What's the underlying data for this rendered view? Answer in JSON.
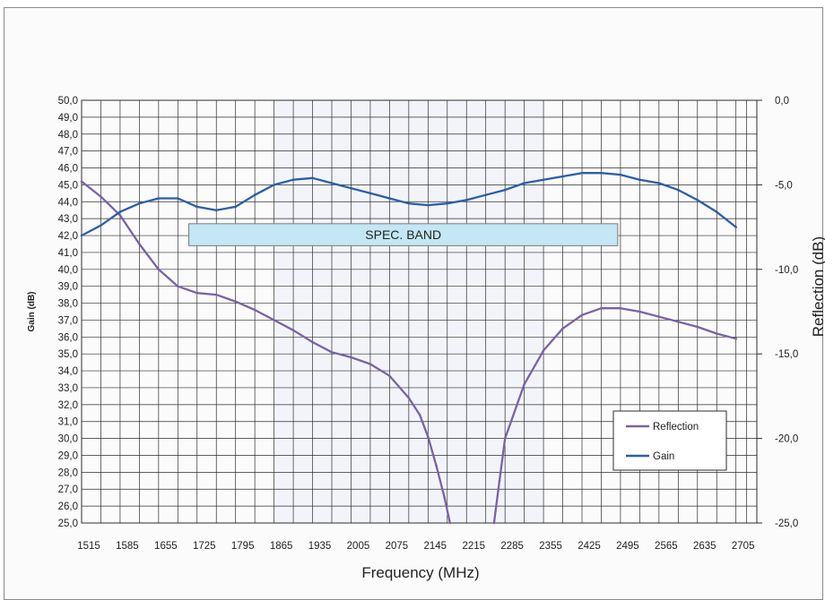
{
  "chart_data": {
    "type": "line",
    "title": "",
    "xlabel": "Frequency (MHz)",
    "ylabel": "Gain (dB)",
    "y2label": "Reflection (dB)",
    "ylim": [
      25,
      50
    ],
    "y2lim": [
      -25,
      0
    ],
    "grid": true,
    "legend_placement": "bottom-right",
    "x_tick_labels": [
      "1515",
      "1585",
      "1655",
      "1725",
      "1795",
      "1865",
      "1935",
      "2005",
      "2075",
      "2145",
      "2215",
      "2285",
      "2355",
      "2425",
      "2495",
      "2565",
      "2635",
      "2705"
    ],
    "y_tick_labels": [
      "25,0",
      "26,0",
      "27,0",
      "28,0",
      "29,0",
      "30,0",
      "31,0",
      "32,0",
      "33,0",
      "34,0",
      "35,0",
      "36,0",
      "37,0",
      "38,0",
      "39,0",
      "40,0",
      "41,0",
      "42,0",
      "43,0",
      "44,0",
      "45,0",
      "46,0",
      "47,0",
      "48,0",
      "49,0",
      "50,0"
    ],
    "y2_tick_labels": [
      "0,0",
      "-5,0",
      "-10,0",
      "-15,0",
      "-20,0",
      "-25,0"
    ],
    "annotation": {
      "text": "SPEC. BAND",
      "x_start": 1710,
      "x_end": 2490,
      "y_bottom": 41.4,
      "y_top": 42.7
    },
    "series": [
      {
        "name": "Reflection",
        "axis": "right",
        "color": "#7a62a8",
        "x": [
          1515,
          1550,
          1585,
          1620,
          1655,
          1690,
          1725,
          1760,
          1795,
          1830,
          1865,
          1900,
          1935,
          1970,
          2005,
          2040,
          2075,
          2110,
          2130,
          2145,
          2160,
          2175,
          2185,
          2195,
          2255,
          2265,
          2275,
          2285,
          2320,
          2355,
          2390,
          2425,
          2460,
          2495,
          2530,
          2565,
          2600,
          2635,
          2670,
          2705
        ],
        "values": [
          -4.8,
          -5.7,
          -6.8,
          -8.5,
          -10.0,
          -11.0,
          -11.4,
          -11.5,
          -11.9,
          -12.4,
          -13.0,
          -13.6,
          -14.3,
          -14.9,
          -15.2,
          -15.6,
          -16.3,
          -17.6,
          -18.6,
          -19.9,
          -21.6,
          -23.5,
          -25.0,
          -25.3,
          -25.3,
          -25.0,
          -22.5,
          -20.0,
          -16.8,
          -14.8,
          -13.5,
          -12.7,
          -12.3,
          -12.3,
          -12.5,
          -12.8,
          -13.1,
          -13.4,
          -13.8,
          -14.1
        ]
      },
      {
        "name": "Gain",
        "axis": "left",
        "color": "#2c5ea8",
        "x": [
          1515,
          1550,
          1585,
          1620,
          1655,
          1690,
          1725,
          1760,
          1795,
          1830,
          1865,
          1900,
          1935,
          1970,
          2005,
          2040,
          2075,
          2110,
          2145,
          2180,
          2215,
          2250,
          2285,
          2320,
          2355,
          2390,
          2425,
          2460,
          2495,
          2530,
          2565,
          2600,
          2635,
          2670,
          2705
        ],
        "values": [
          42.0,
          42.6,
          43.4,
          43.9,
          44.2,
          44.2,
          43.7,
          43.5,
          43.7,
          44.4,
          45.0,
          45.3,
          45.4,
          45.1,
          44.8,
          44.5,
          44.2,
          43.9,
          43.8,
          43.9,
          44.1,
          44.4,
          44.7,
          45.1,
          45.3,
          45.5,
          45.7,
          45.7,
          45.6,
          45.3,
          45.1,
          44.7,
          44.1,
          43.4,
          42.5
        ]
      }
    ]
  }
}
